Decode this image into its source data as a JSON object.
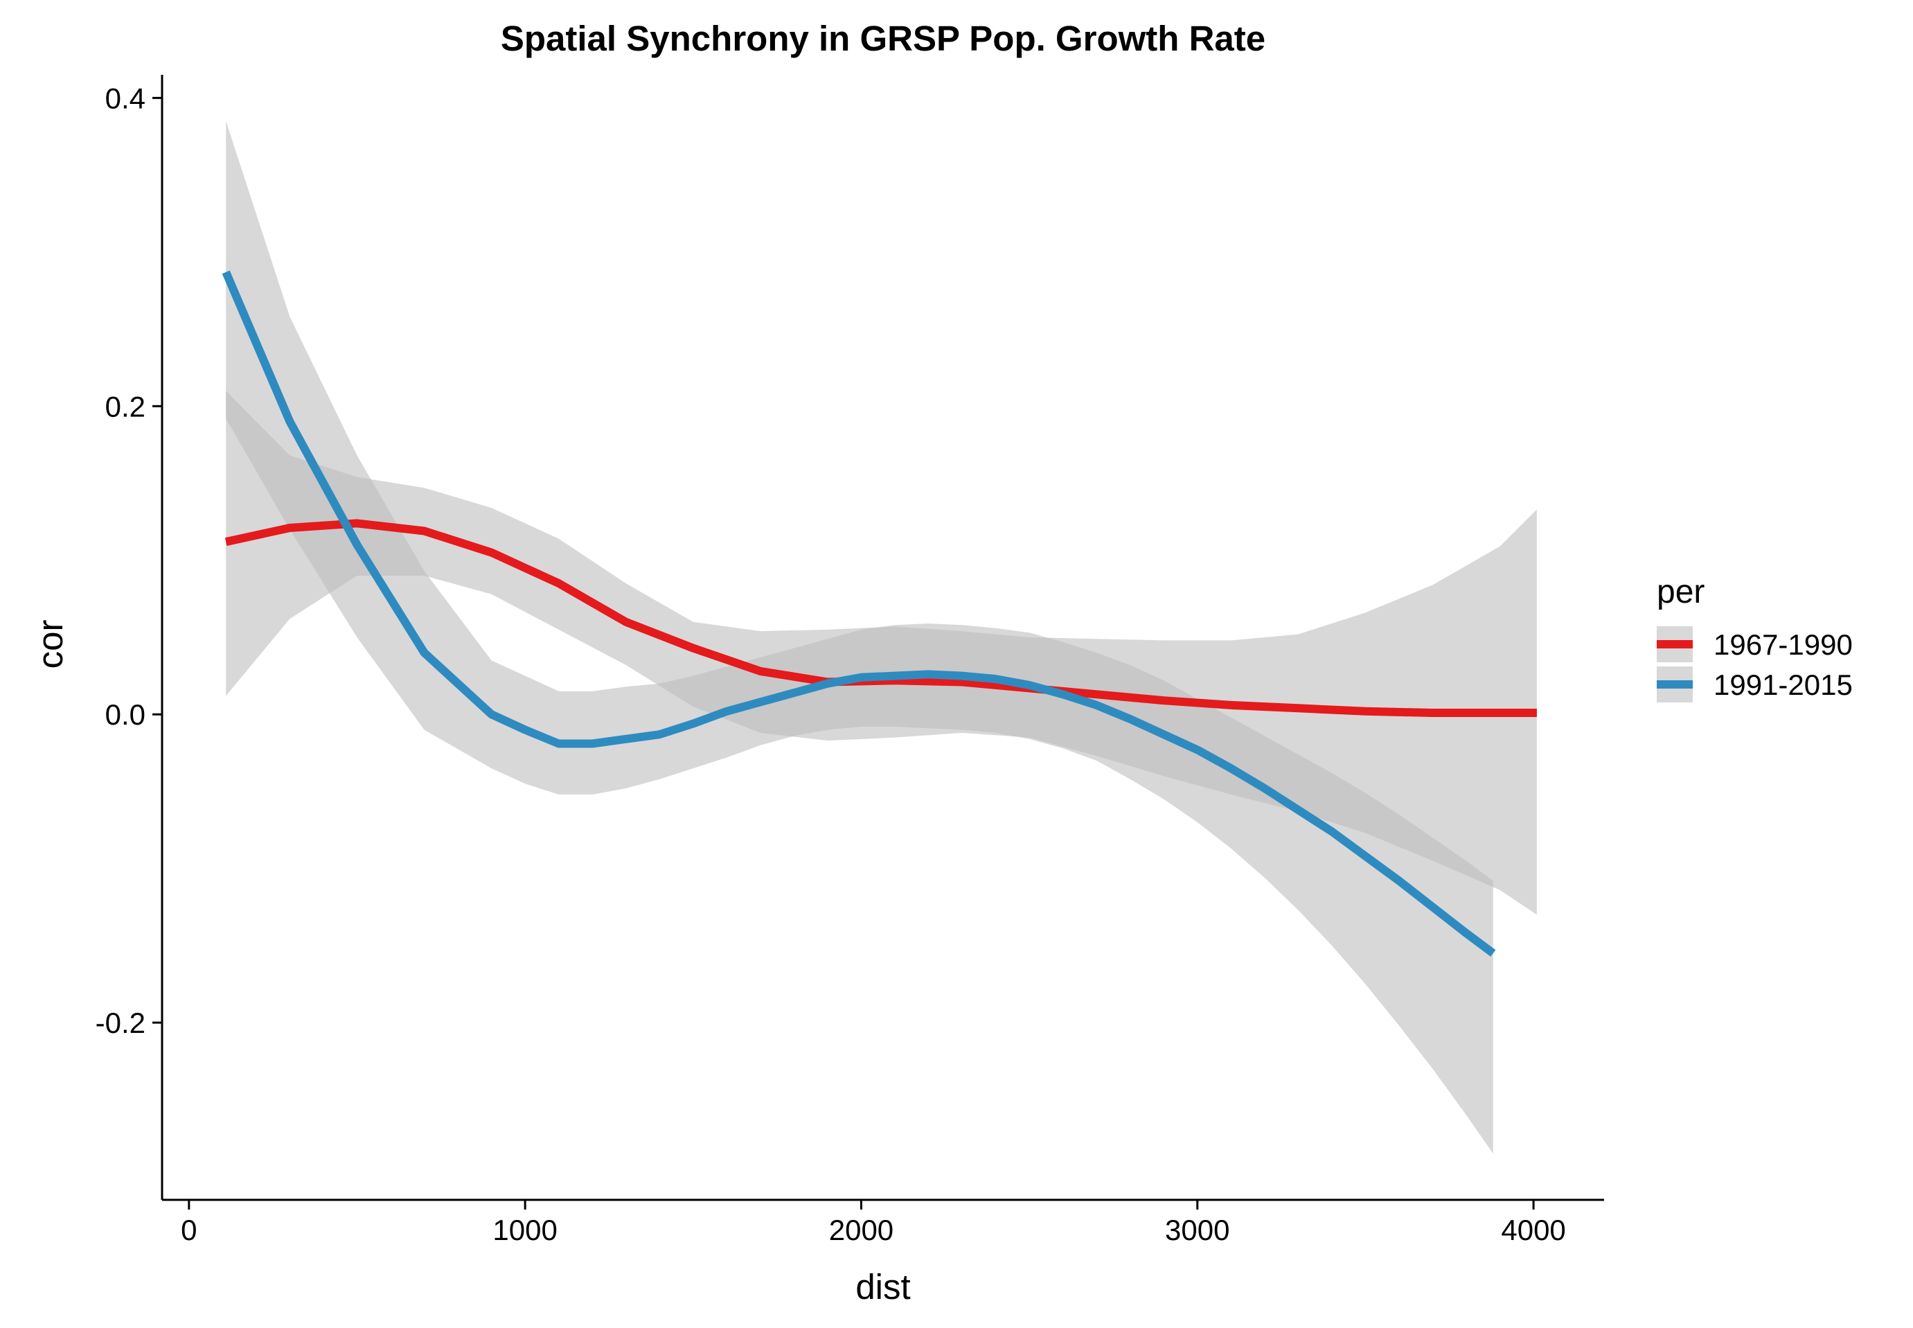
{
  "chart_data": {
    "type": "line",
    "title": "Spatial Synchrony in GRSP Pop. Growth Rate",
    "xlabel": "dist",
    "ylabel": "cor",
    "xlim": [
      -80,
      4210
    ],
    "ylim": [
      -0.315,
      0.415
    ],
    "x_ticks": [
      0,
      1000,
      2000,
      3000,
      4000
    ],
    "x_tick_labels": [
      "0",
      "1000",
      "2000",
      "3000",
      "4000"
    ],
    "y_ticks": [
      -0.2,
      0.0,
      0.2,
      0.4
    ],
    "y_tick_labels": [
      "-0.2",
      "0.0",
      "0.2",
      "0.4"
    ],
    "grid": false,
    "legend": {
      "title": "per",
      "position": "right"
    },
    "band_color": "#BEBEBE",
    "band_opacity": 0.6,
    "series": [
      {
        "name": "1967-1990",
        "color": "#E41A1C",
        "x": [
          110,
          300,
          500,
          700,
          900,
          1100,
          1300,
          1500,
          1700,
          1900,
          2100,
          2300,
          2500,
          2700,
          2900,
          3100,
          3300,
          3500,
          3700,
          3900,
          4010
        ],
        "y": [
          0.112,
          0.121,
          0.124,
          0.119,
          0.105,
          0.085,
          0.06,
          0.043,
          0.028,
          0.021,
          0.022,
          0.021,
          0.017,
          0.013,
          0.009,
          0.006,
          0.004,
          0.002,
          0.001,
          0.001,
          0.001
        ],
        "lower": [
          0.012,
          0.062,
          0.09,
          0.09,
          0.078,
          0.055,
          0.032,
          0.005,
          -0.012,
          -0.017,
          -0.015,
          -0.012,
          -0.015,
          -0.027,
          -0.04,
          -0.052,
          -0.063,
          -0.077,
          -0.095,
          -0.114,
          -0.13
        ],
        "upper": [
          0.21,
          0.168,
          0.154,
          0.147,
          0.134,
          0.114,
          0.085,
          0.06,
          0.054,
          0.055,
          0.057,
          0.054,
          0.05,
          0.049,
          0.048,
          0.048,
          0.052,
          0.066,
          0.084,
          0.109,
          0.133
        ]
      },
      {
        "name": "1991-2015",
        "color": "#2E8BC0",
        "x": [
          110,
          300,
          500,
          700,
          900,
          1000,
          1100,
          1200,
          1300,
          1400,
          1500,
          1600,
          1700,
          1800,
          1900,
          2000,
          2100,
          2200,
          2300,
          2400,
          2500,
          2600,
          2700,
          2800,
          2900,
          3000,
          3100,
          3200,
          3300,
          3400,
          3500,
          3600,
          3700,
          3800,
          3880
        ],
        "y": [
          0.287,
          0.19,
          0.11,
          0.04,
          0.0,
          -0.01,
          -0.019,
          -0.019,
          -0.016,
          -0.013,
          -0.006,
          0.002,
          0.008,
          0.014,
          0.02,
          0.024,
          0.025,
          0.026,
          0.025,
          0.023,
          0.019,
          0.013,
          0.006,
          -0.003,
          -0.013,
          -0.023,
          -0.035,
          -0.048,
          -0.062,
          -0.076,
          -0.092,
          -0.108,
          -0.125,
          -0.142,
          -0.155
        ],
        "lower": [
          0.192,
          0.12,
          0.05,
          -0.01,
          -0.035,
          -0.045,
          -0.052,
          -0.052,
          -0.048,
          -0.042,
          -0.035,
          -0.028,
          -0.02,
          -0.014,
          -0.01,
          -0.008,
          -0.008,
          -0.009,
          -0.01,
          -0.012,
          -0.016,
          -0.022,
          -0.03,
          -0.042,
          -0.055,
          -0.07,
          -0.087,
          -0.106,
          -0.127,
          -0.15,
          -0.175,
          -0.202,
          -0.23,
          -0.26,
          -0.285
        ],
        "upper": [
          0.385,
          0.258,
          0.168,
          0.093,
          0.035,
          0.025,
          0.015,
          0.015,
          0.018,
          0.02,
          0.025,
          0.031,
          0.037,
          0.043,
          0.049,
          0.055,
          0.058,
          0.059,
          0.058,
          0.056,
          0.053,
          0.047,
          0.04,
          0.032,
          0.022,
          0.01,
          -0.002,
          -0.014,
          -0.026,
          -0.038,
          -0.051,
          -0.065,
          -0.08,
          -0.095,
          -0.108
        ]
      }
    ]
  }
}
